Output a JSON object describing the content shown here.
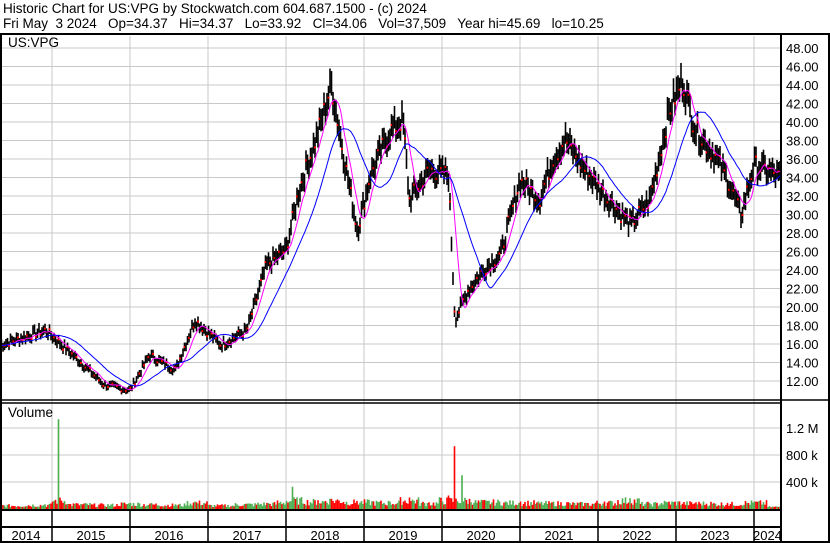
{
  "header": {
    "title": "Historic Chart for US:VPG by Stockwatch.com 604.687.1500 - (c) 2024",
    "quote": "Fri May  3 2024   Op=34.37   Hi=34.37   Lo=33.92   Cl=34.06   Vol=37,509   Year hi=45.69   lo=10.25"
  },
  "chart_data": {
    "type": "line",
    "symbol_label": "US:VPG",
    "volume_label": "Volume",
    "colors": {
      "price": "#000000",
      "ma_short": "#ff00ff",
      "ma_long": "#0000ff",
      "volume_up": "#4caf50",
      "volume_down": "#ff0000",
      "grid": "#c8c8c8"
    },
    "ylim": [
      11,
      49
    ],
    "y_ticks": [
      "48.00",
      "46.00",
      "44.00",
      "42.00",
      "40.00",
      "38.00",
      "36.00",
      "34.00",
      "32.00",
      "30.00",
      "28.00",
      "26.00",
      "24.00",
      "22.00",
      "20.00",
      "18.00",
      "16.00",
      "14.00",
      "12.00"
    ],
    "volume_ylim": [
      0,
      1600000
    ],
    "volume_ticks": [
      {
        "v": 1200000,
        "label": "1.2 M"
      },
      {
        "v": 800000,
        "label": "800 k"
      },
      {
        "v": 400000,
        "label": "400 k"
      }
    ],
    "x_ticks": [
      "2014",
      "2015",
      "2016",
      "2017",
      "2018",
      "2019",
      "2020",
      "2021",
      "2022",
      "2023",
      "2024"
    ],
    "xlim": [
      "2014-05",
      "2024-05"
    ],
    "grid": true,
    "price": [
      [
        "2014-05",
        15.9
      ],
      [
        "2014-12",
        17.5
      ],
      [
        "2015-05",
        14.3
      ],
      [
        "2015-09",
        11.6
      ],
      [
        "2016-01",
        11.0
      ],
      [
        "2016-04",
        14.8
      ],
      [
        "2016-08",
        13.2
      ],
      [
        "2016-11",
        18.6
      ],
      [
        "2017-03",
        15.9
      ],
      [
        "2017-07",
        17.5
      ],
      [
        "2017-10",
        24.5
      ],
      [
        "2018-01",
        26.2
      ],
      [
        "2018-03",
        32.6
      ],
      [
        "2018-06",
        39.0
      ],
      [
        "2018-08",
        44.0
      ],
      [
        "2018-10",
        35.9
      ],
      [
        "2018-12",
        28.3
      ],
      [
        "2019-02",
        34.3
      ],
      [
        "2019-05",
        39.0
      ],
      [
        "2019-07",
        40.2
      ],
      [
        "2019-08",
        31.6
      ],
      [
        "2019-11",
        34.8
      ],
      [
        "2020-02",
        34.3
      ],
      [
        "2020-03",
        18.6
      ],
      [
        "2020-05",
        21.8
      ],
      [
        "2020-08",
        24.5
      ],
      [
        "2020-10",
        25.6
      ],
      [
        "2021-01",
        33.7
      ],
      [
        "2021-04",
        31.6
      ],
      [
        "2021-06",
        35.9
      ],
      [
        "2021-08",
        38.1
      ],
      [
        "2021-11",
        34.8
      ],
      [
        "2022-02",
        32.1
      ],
      [
        "2022-06",
        28.9
      ],
      [
        "2022-09",
        31.6
      ],
      [
        "2022-12",
        41.3
      ],
      [
        "2023-02",
        44.5
      ],
      [
        "2023-04",
        39.1
      ],
      [
        "2023-07",
        36.4
      ],
      [
        "2023-09",
        33.7
      ],
      [
        "2023-11",
        29.9
      ],
      [
        "2024-01",
        35.4
      ],
      [
        "2024-05",
        34.06
      ]
    ],
    "volume": [
      [
        "2014-05",
        60000
      ],
      [
        "2014-12",
        70000
      ],
      [
        "2015-02",
        1330000
      ],
      [
        "2015-05",
        80000
      ],
      [
        "2015-09",
        70000
      ],
      [
        "2016-01",
        90000
      ],
      [
        "2016-04",
        80000
      ],
      [
        "2016-08",
        70000
      ],
      [
        "2016-11",
        110000
      ],
      [
        "2017-03",
        60000
      ],
      [
        "2017-07",
        80000
      ],
      [
        "2017-10",
        90000
      ],
      [
        "2018-01",
        120000
      ],
      [
        "2018-02",
        330000
      ],
      [
        "2018-06",
        130000
      ],
      [
        "2018-08",
        150000
      ],
      [
        "2018-12",
        120000
      ],
      [
        "2019-05",
        110000
      ],
      [
        "2019-08",
        170000
      ],
      [
        "2019-11",
        100000
      ],
      [
        "2020-02",
        200000
      ],
      [
        "2020-03",
        930000
      ],
      [
        "2020-04",
        500000
      ],
      [
        "2020-08",
        120000
      ],
      [
        "2021-01",
        110000
      ],
      [
        "2021-06",
        100000
      ],
      [
        "2021-11",
        90000
      ],
      [
        "2022-02",
        110000
      ],
      [
        "2022-06",
        160000
      ],
      [
        "2022-09",
        90000
      ],
      [
        "2022-12",
        110000
      ],
      [
        "2023-04",
        100000
      ],
      [
        "2023-09",
        90000
      ],
      [
        "2024-01",
        110000
      ],
      [
        "2024-05",
        37509
      ]
    ]
  }
}
